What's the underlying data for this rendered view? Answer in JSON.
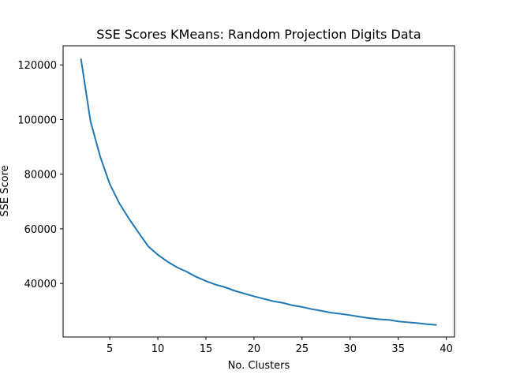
{
  "chart_data": {
    "type": "line",
    "title": "SSE Scores KMeans: Random Projection Digits Data",
    "xlabel": "No. Clusters",
    "ylabel": "SSE Score",
    "xlim": [
      0.15,
      40.85
    ],
    "ylim": [
      20400,
      127000
    ],
    "xticks": [
      5,
      10,
      15,
      20,
      25,
      30,
      35,
      40
    ],
    "yticks": [
      40000,
      60000,
      80000,
      100000,
      120000
    ],
    "grid": false,
    "line_color": "#1f77b4",
    "series": [
      {
        "x": [
          2,
          3,
          4,
          5,
          6,
          7,
          8,
          9,
          10,
          11,
          12,
          13,
          14,
          15,
          16,
          17,
          18,
          19,
          20,
          21,
          22,
          23,
          24,
          25,
          26,
          27,
          28,
          29,
          30,
          31,
          32,
          33,
          34,
          35,
          36,
          37,
          38,
          39
        ],
        "values": [
          122300,
          99300,
          86500,
          76400,
          69300,
          63700,
          58600,
          53600,
          50500,
          48000,
          45900,
          44300,
          42400,
          40900,
          39600,
          38600,
          37300,
          36300,
          35300,
          34400,
          33500,
          32900,
          32000,
          31400,
          30600,
          30000,
          29300,
          28900,
          28400,
          27800,
          27300,
          26900,
          26700,
          26100,
          25800,
          25500,
          25100,
          24800
        ]
      }
    ]
  }
}
